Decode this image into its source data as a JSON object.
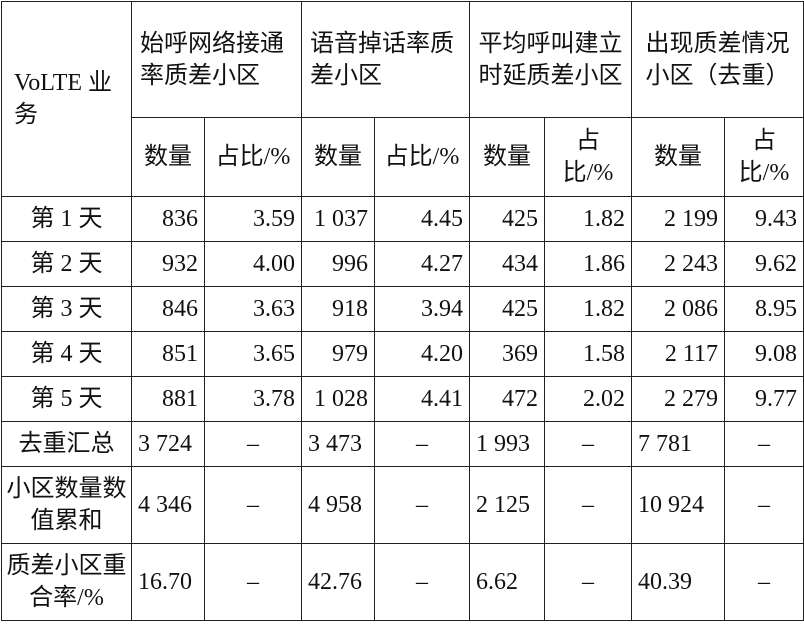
{
  "table": {
    "header": [
      "VoLTE 业务",
      "始呼网络接通率质差小区",
      "语音掉话率质差小区",
      "平均呼叫建立时延质差小区",
      "出现质差情况小区（去重）"
    ],
    "subheader": [
      "数量",
      "占比/%",
      "数量",
      "占比/%",
      "数量",
      "占比/%",
      "数量",
      "占比/%"
    ],
    "rows": [
      [
        "第 1 天",
        "836",
        "3.59",
        "1 037",
        "4.45",
        "425",
        "1.82",
        "2 199",
        "9.43"
      ],
      [
        "第 2 天",
        "932",
        "4.00",
        "996",
        "4.27",
        "434",
        "1.86",
        "2 243",
        "9.62"
      ],
      [
        "第 3 天",
        "846",
        "3.63",
        "918",
        "3.94",
        "425",
        "1.82",
        "2 086",
        "8.95"
      ],
      [
        "第 4 天",
        "851",
        "3.65",
        "979",
        "4.20",
        "369",
        "1.58",
        "2 117",
        "9.08"
      ],
      [
        "第 5 天",
        "881",
        "3.78",
        "1 028",
        "4.41",
        "472",
        "2.02",
        "2 279",
        "9.77"
      ],
      [
        "去重汇总",
        "3 724",
        "–",
        "3 473",
        "–",
        "1 993",
        "–",
        "7 781",
        "–"
      ],
      [
        "小区数量数值累和",
        "4 346",
        "–",
        "4 958",
        "–",
        "2 125",
        "–",
        "10 924",
        "–"
      ],
      [
        "质差小区重合率/%",
        "16.70",
        "–",
        "42.76",
        "–",
        "6.62",
        "–",
        "40.39",
        "–"
      ]
    ]
  }
}
